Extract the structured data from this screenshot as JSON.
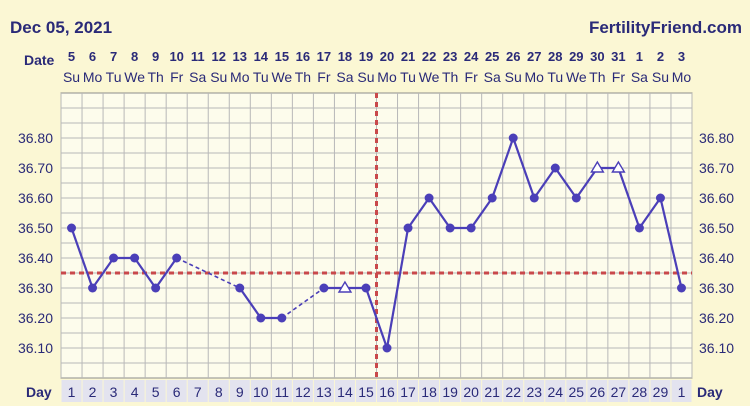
{
  "header": {
    "date": "Dec 05, 2021",
    "brand": "FertilityFriend.com"
  },
  "labels": {
    "date_row": "Date",
    "day_row": "Day"
  },
  "chart_data": {
    "type": "line",
    "title": "",
    "xlabel": "",
    "ylabel": "",
    "ylim": [
      36.0,
      36.95
    ],
    "y_ticks": [
      36.1,
      36.2,
      36.3,
      36.4,
      36.5,
      36.6,
      36.7,
      36.8
    ],
    "dates": [
      "5",
      "6",
      "7",
      "8",
      "9",
      "10",
      "11",
      "12",
      "13",
      "14",
      "15",
      "16",
      "17",
      "18",
      "19",
      "20",
      "21",
      "22",
      "23",
      "24",
      "25",
      "26",
      "27",
      "28",
      "29",
      "30",
      "31",
      "1",
      "2",
      "3"
    ],
    "weekdays": [
      "Su",
      "Mo",
      "Tu",
      "We",
      "Th",
      "Fr",
      "Sa",
      "Su",
      "Mo",
      "Tu",
      "We",
      "Th",
      "Fr",
      "Sa",
      "Su",
      "Mo",
      "Tu",
      "We",
      "Th",
      "Fr",
      "Sa",
      "Su",
      "Mo",
      "Tu",
      "We",
      "Th",
      "Fr",
      "Sa",
      "Su",
      "Mo"
    ],
    "days": [
      "1",
      "2",
      "3",
      "4",
      "5",
      "6",
      "7",
      "8",
      "9",
      "10",
      "11",
      "12",
      "13",
      "14",
      "15",
      "16",
      "17",
      "18",
      "19",
      "20",
      "21",
      "22",
      "23",
      "24",
      "25",
      "26",
      "27",
      "28",
      "29",
      "1"
    ],
    "temperatures": [
      36.5,
      36.3,
      36.4,
      36.4,
      36.3,
      36.4,
      null,
      null,
      36.3,
      36.2,
      36.2,
      null,
      36.3,
      36.3,
      36.3,
      36.1,
      36.5,
      36.6,
      36.5,
      36.5,
      36.6,
      36.8,
      36.6,
      36.7,
      36.6,
      36.7,
      36.7,
      36.5,
      36.6,
      36.3
    ],
    "discarded_days": [
      14,
      26,
      27
    ],
    "dashed_gaps": [
      [
        6,
        9
      ],
      [
        11,
        13
      ]
    ],
    "coverline": 36.35,
    "ovulation_day": 16,
    "colors": {
      "line": "#4b3fb8",
      "reference": "#c9494b",
      "grid": "#b8b8b8",
      "plot_bg": "#fdfcec",
      "day_cell": "#e3e3ef"
    }
  }
}
